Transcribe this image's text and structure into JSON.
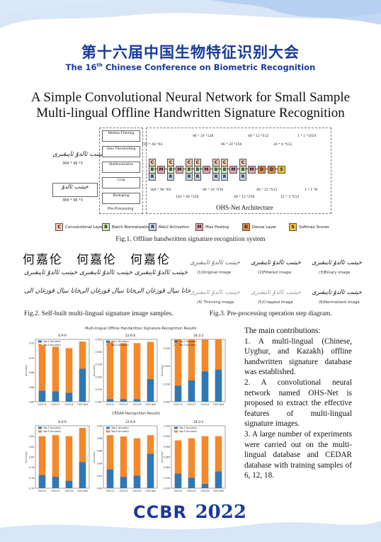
{
  "header": {
    "title_cn": "第十六届中国生物特征识别大会",
    "title_en_pre": "The 16",
    "title_en_sup": "th",
    "title_en_post": " Chinese Conference on Biometric Recognition"
  },
  "paper": {
    "title_line1": "A Simple Convolutional Neural Network for Small Sample",
    "title_line2": "Multi-lingual Offline Handwritten Signature Recognition"
  },
  "fig1": {
    "preprocess_steps": [
      "Median Filtering",
      "Otsu Thresholding",
      "Skeletonization",
      "Crop",
      "Reshaping"
    ],
    "preprocess_label": "Pre-Processing",
    "input_dim": "384 * 96 *3",
    "output_dim": "384 * 96 *3",
    "arch_label": "OHS-Net Architecture",
    "dims_top": [
      "192 * 48 *64",
      "96 * 24 *128",
      "96 * 24 *256",
      "48 * 12 *512",
      "24 * 6 *512",
      "1 * 1 *1024"
    ],
    "dims_bottom": [
      "384 * 96 *64",
      "192 * 48 *128",
      "96 * 24 *256",
      "48 * 12 *256",
      "48 * 12 *512",
      "12 * 3 *512",
      "1 * 1 *N"
    ],
    "legend": [
      {
        "letter": "C",
        "label": "Convolutional Layer",
        "color": "#f2c9b0"
      },
      {
        "letter": "B",
        "label": "Batch Normalization",
        "color": "#cfe6b8"
      },
      {
        "letter": "R",
        "label": "ReLU Activation",
        "color": "#c4d4ea"
      },
      {
        "letter": "M",
        "label": "Max Pooling",
        "color": "#e9a6b5"
      },
      {
        "letter": "D",
        "label": "Dense Layer",
        "color": "#e9893f"
      },
      {
        "letter": "S",
        "label": "Softmax Scores",
        "color": "#f2c036"
      }
    ],
    "caption": "Fig.1. Offline handwritten signature recognition system"
  },
  "fig2": {
    "caption": "Fig.2. Self-built multi-lingual signature image samples.",
    "chinese_samples": [
      "何嘉伦",
      "何嘉伦",
      "何嘉伦"
    ]
  },
  "fig3": {
    "caption": "Fig.3. Pre-processing operation step diagram.",
    "labels": [
      "(1)Original image",
      "(2)Filtered image",
      "(3)Binary image",
      "(4) Thinning image",
      "(5)Cropped image",
      "(6)Normalized image"
    ]
  },
  "charts_top_title": "Multi-lingual Offline Handwritten Signature Recognition Results",
  "charts_bottom_title": "CEDAR Recognition Results",
  "chart_data": [
    {
      "type": "bar",
      "title": "6:9:9",
      "categories": [
        "VGG11",
        "VGG13",
        "VGG16",
        "OHS-Net"
      ],
      "series": [
        {
          "name": "Top-1 Accuracy",
          "values": [
            0.855,
            0.854,
            0.852,
            0.885
          ]
        },
        {
          "name": "Top-5 Accuracy",
          "values": [
            0.917,
            0.915,
            0.913,
            0.922
          ]
        }
      ],
      "ylim": [
        0.84,
        0.925
      ],
      "yticks": [
        "0.84",
        "0.86",
        "0.88",
        "0.90",
        "0.92"
      ],
      "ylabel": "Accuracy"
    },
    {
      "type": "bar",
      "title": "12:6:6",
      "categories": [
        "VGG11",
        "VGG13",
        "VGG16",
        "OHS-Net"
      ],
      "series": [
        {
          "name": "Top-1 Accuracy",
          "values": [
            0.902,
            0.902,
            0.902,
            0.918
          ]
        },
        {
          "name": "Top-5 Accuracy",
          "values": [
            0.948,
            0.947,
            0.947,
            0.948
          ]
        }
      ],
      "ylim": [
        0.9,
        0.95
      ],
      "yticks": [
        "0.900",
        "0.910",
        "0.920",
        "0.930",
        "0.940",
        "0.950"
      ],
      "ylabel": "Accuracy"
    },
    {
      "type": "bar",
      "title": "18:3:3",
      "categories": [
        "VGG11",
        "VGG13",
        "VGG16",
        "OHS-Net"
      ],
      "series": [
        {
          "name": "Top-1 Accuracy",
          "values": [
            0.909,
            0.912,
            0.917,
            0.918
          ]
        },
        {
          "name": "Top-5 Accuracy",
          "values": [
            0.935,
            0.935,
            0.935,
            0.935
          ]
        }
      ],
      "ylim": [
        0.9,
        0.935
      ],
      "yticks": [
        "0.900",
        "0.910",
        "0.920",
        "0.930"
      ],
      "ylabel": "Accuracy"
    },
    {
      "type": "bar",
      "title": "6:9:9",
      "categories": [
        "VGG11",
        "VGG13",
        "VGG16",
        "OHS-Net"
      ],
      "series": [
        {
          "name": "Top-1 Accuracy",
          "values": [
            0.765,
            0.762,
            0.754,
            0.79
          ]
        },
        {
          "name": "Top-5 Accuracy",
          "values": [
            0.84,
            0.842,
            0.84,
            0.856
          ]
        }
      ],
      "ylim": [
        0.74,
        0.86
      ],
      "yticks": [
        "0.74",
        "0.76",
        "0.78",
        "0.80",
        "0.82",
        "0.84"
      ],
      "ylabel": "Accuracy"
    },
    {
      "type": "bar",
      "title": "12:6:6",
      "categories": [
        "VGG11",
        "VGG13",
        "VGG16",
        "OHS-Net"
      ],
      "series": [
        {
          "name": "Top-1 Accuracy",
          "values": [
            0.83,
            0.818,
            0.82,
            0.855
          ]
        },
        {
          "name": "Top-5 Accuracy",
          "values": [
            0.885,
            0.883,
            0.88,
            0.885
          ]
        }
      ],
      "ylim": [
        0.8,
        0.9
      ],
      "yticks": [
        "0.80",
        "0.82",
        "0.84",
        "0.86",
        "0.88",
        "0.90"
      ],
      "ylabel": "Accuracy"
    },
    {
      "type": "bar",
      "title": "18:3:3",
      "categories": [
        "VGG11",
        "VGG13",
        "VGG16",
        "OHS-Net"
      ],
      "series": [
        {
          "name": "Top-1 Accuracy",
          "values": [
            0.977,
            0.975,
            0.972,
            0.978
          ]
        },
        {
          "name": "Top-5 Accuracy",
          "values": [
            0.993,
            0.994,
            0.995,
            0.995
          ]
        }
      ],
      "ylim": [
        0.97,
        1.0
      ],
      "yticks": [
        "0.970",
        "0.975",
        "0.980",
        "0.985",
        "0.990",
        "0.995",
        "1.000"
      ],
      "ylabel": "Accuracy"
    }
  ],
  "contributions": {
    "heading": "The main contributions:",
    "items": [
      "1. A multi-lingual (Chinese, Uyghur, and Kazakh) offline handwritten signature database was established.",
      "2. A convolutional neural network named OHS-Net is proposed to extract the effective features of multi-lingual signature images.",
      "3. A large number of experiments were carried out on the multi-lingual database and CEDAR database with training samples of 6, 12, 18."
    ]
  },
  "footer": {
    "logo_text": "CCBR",
    "year": "2022"
  },
  "colors": {
    "top1": "#2f78b5",
    "top5": "#f5882a",
    "brand": "#1a3a9a"
  }
}
